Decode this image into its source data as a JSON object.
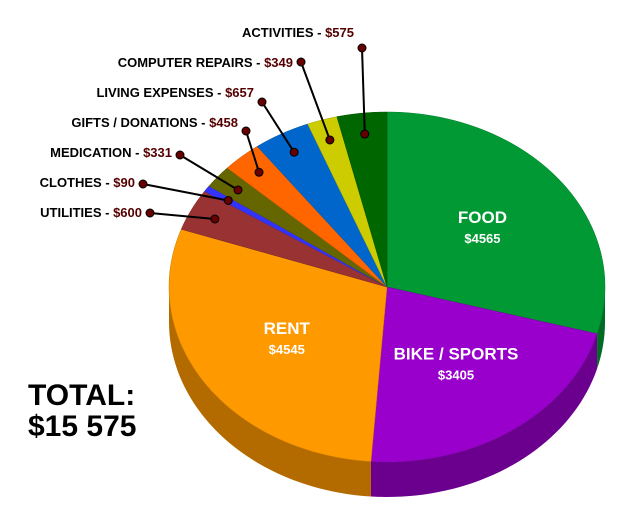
{
  "chart_data": {
    "type": "pie",
    "categories": [
      "FOOD",
      "BIKE / SPORTS",
      "RENT",
      "UTILITIES",
      "CLOTHES",
      "MEDICATION",
      "GIFTS / DONATIONS",
      "LIVING EXPENSES",
      "COMPUTER REPAIRS",
      "ACTIVITIES"
    ],
    "values": [
      4565,
      3405,
      4545,
      600,
      90,
      331,
      458,
      657,
      349,
      575
    ],
    "value_labels": [
      "$4565",
      "$3405",
      "$4545",
      "$600",
      "$90",
      "$331",
      "$458",
      "$657",
      "$349",
      "$575"
    ],
    "colors": [
      "#009933",
      "#9900cc",
      "#ff9900",
      "#993333",
      "#3333ff",
      "#666600",
      "#ff6600",
      "#0066cc",
      "#cccc00",
      "#006600"
    ],
    "callout_separator": " - ",
    "total_label": "TOTAL:",
    "total_value": "$15 575"
  }
}
